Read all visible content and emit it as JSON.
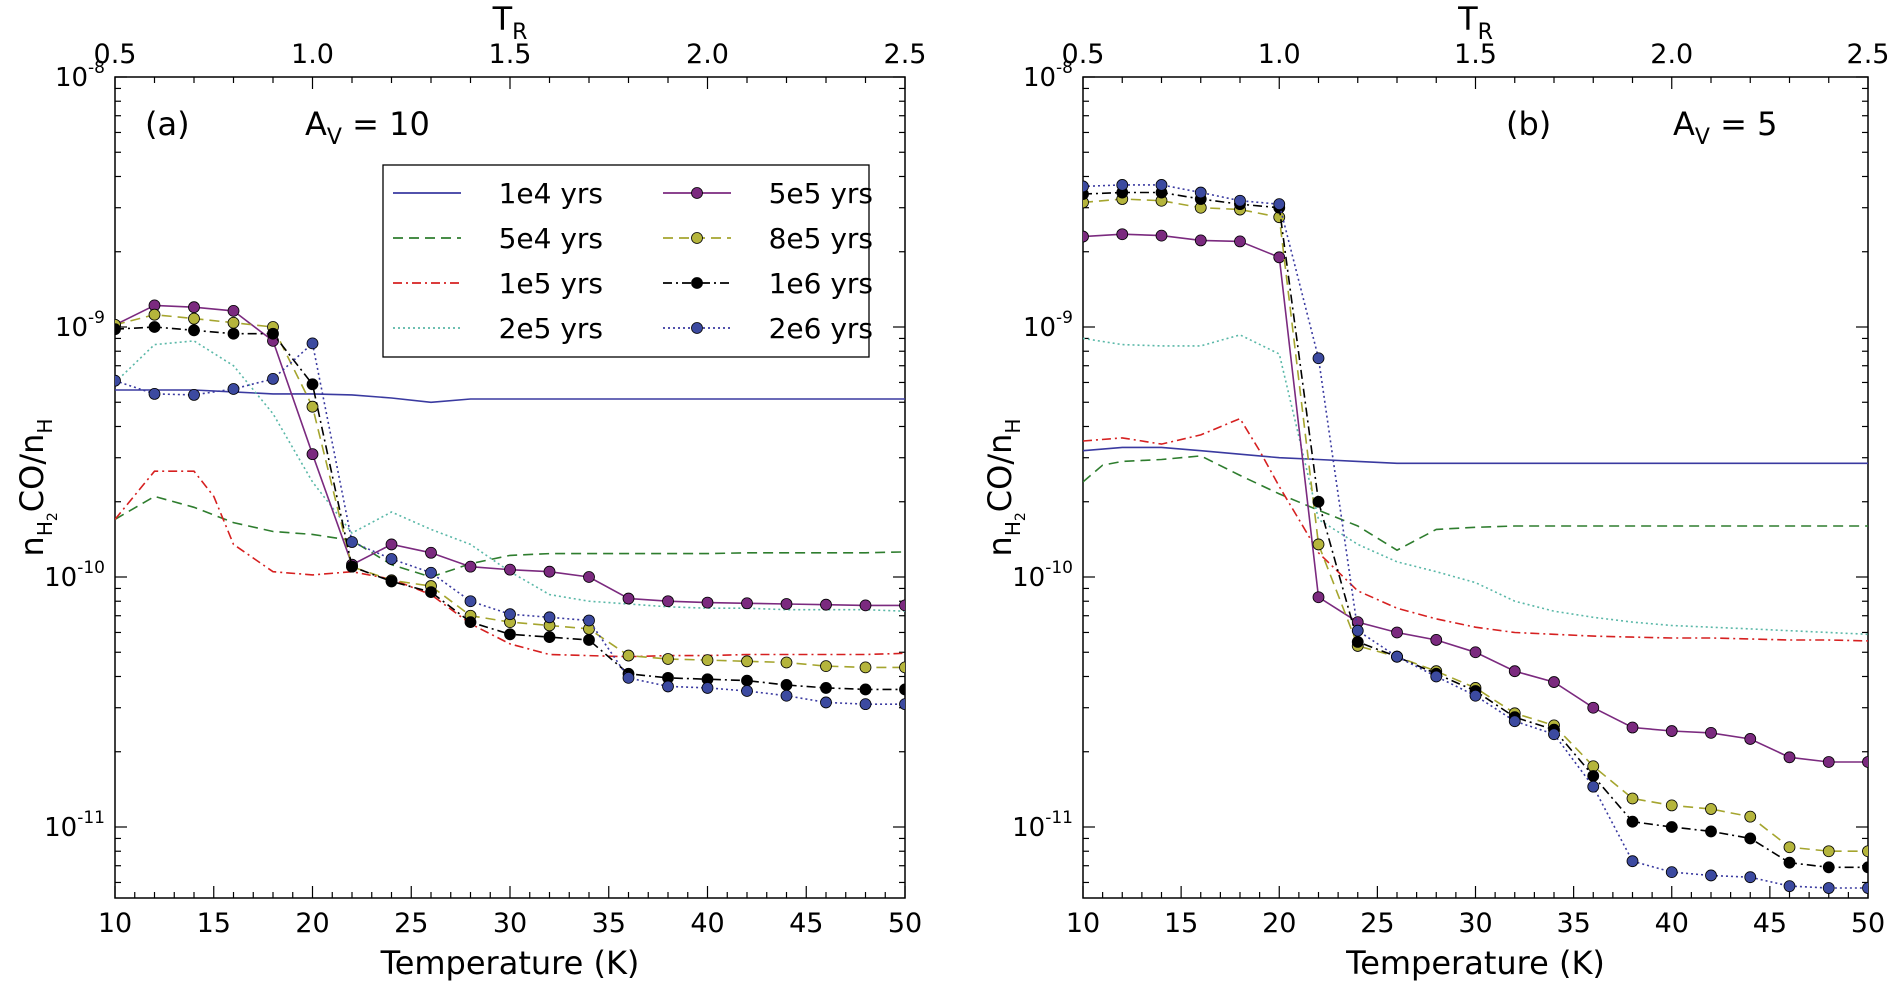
{
  "chart_data": [
    {
      "type": "line",
      "panel_label": "(a)",
      "title_prefix": "A",
      "title_sub": "V",
      "title_suffix": " = 10",
      "xlabel": "Temperature (K)",
      "ylabel": "nH2CO/nH",
      "ylabel_main": "n",
      "ylabel_sub1": "H",
      "ylabel_sub1b": "2",
      "ylabel_mid": "CO/n",
      "ylabel_sub2": "H",
      "top_label_main": "T",
      "top_label_sub": "R",
      "xlim": [
        10,
        50
      ],
      "top_xlim": [
        0.5,
        2.5
      ],
      "ylim": [
        5.2e-12,
        1e-08
      ],
      "yscale": "log",
      "x_ticks": [
        "10",
        "15",
        "20",
        "25",
        "30",
        "35",
        "40",
        "45",
        "50"
      ],
      "top_ticks": [
        "0.5",
        "1.0",
        "1.5",
        "2.0",
        "2.5"
      ],
      "y_ticks": [
        {
          "base": "10",
          "exp": "-8",
          "value": 1e-08
        },
        {
          "base": "10",
          "exp": "-9",
          "value": 1e-09
        },
        {
          "base": "10",
          "exp": "-10",
          "value": 1e-10
        },
        {
          "base": "10",
          "exp": "-11",
          "value": 1e-11
        }
      ],
      "legend_position": "upper-right",
      "series": [
        {
          "name": "1e4 yrs",
          "style": "solid",
          "color": "#3a3aa0",
          "marker": false,
          "x": [
            10,
            12,
            14,
            16,
            18,
            20,
            22,
            24,
            26,
            28,
            30,
            32,
            34,
            36,
            38,
            40,
            42,
            44,
            46,
            48,
            50
          ],
          "values": [
            5.6e-10,
            5.6e-10,
            5.6e-10,
            5.5e-10,
            5.4e-10,
            5.4e-10,
            5.35e-10,
            5.2e-10,
            5e-10,
            5.15e-10,
            5.15e-10,
            5.15e-10,
            5.15e-10,
            5.15e-10,
            5.15e-10,
            5.15e-10,
            5.15e-10,
            5.15e-10,
            5.15e-10,
            5.15e-10,
            5.15e-10
          ]
        },
        {
          "name": "5e4 yrs",
          "style": "dashed",
          "color": "#2e7d2e",
          "marker": false,
          "x": [
            10,
            12,
            14,
            16,
            18,
            20,
            22,
            24,
            26,
            28,
            30,
            32,
            34,
            36,
            38,
            40,
            42,
            44,
            46,
            48,
            50
          ],
          "values": [
            1.7e-10,
            2.1e-10,
            1.9e-10,
            1.65e-10,
            1.52e-10,
            1.48e-10,
            1.4e-10,
            1.12e-10,
            1e-10,
            1.13e-10,
            1.22e-10,
            1.24e-10,
            1.24e-10,
            1.24e-10,
            1.24e-10,
            1.24e-10,
            1.25e-10,
            1.25e-10,
            1.25e-10,
            1.25e-10,
            1.26e-10
          ]
        },
        {
          "name": "1e5 yrs",
          "style": "dashdot",
          "color": "#d62020",
          "marker": false,
          "x": [
            10,
            12,
            14,
            15,
            16,
            18,
            20,
            22,
            24,
            26,
            28,
            30,
            32,
            34,
            36,
            38,
            40,
            42,
            44,
            46,
            48,
            50
          ],
          "values": [
            1.7e-10,
            2.65e-10,
            2.65e-10,
            2.1e-10,
            1.35e-10,
            1.05e-10,
            1.02e-10,
            1.05e-10,
            9.8e-11,
            8.5e-11,
            6.5e-11,
            5.4e-11,
            4.9e-11,
            4.85e-11,
            4.8e-11,
            4.85e-11,
            4.85e-11,
            4.9e-11,
            4.9e-11,
            4.9e-11,
            4.9e-11,
            4.95e-11
          ]
        },
        {
          "name": "2e5 yrs",
          "style": "dotted",
          "color": "#5ab8a8",
          "marker": false,
          "x": [
            10,
            12,
            14,
            16,
            18,
            20,
            22,
            24,
            26,
            28,
            30,
            32,
            34,
            36,
            38,
            40,
            42,
            44,
            46,
            48,
            50
          ],
          "values": [
            6e-10,
            8.5e-10,
            8.8e-10,
            7e-10,
            4.5e-10,
            2.4e-10,
            1.5e-10,
            1.82e-10,
            1.55e-10,
            1.35e-10,
            1.05e-10,
            8.5e-11,
            8e-11,
            7.8e-11,
            7.6e-11,
            7.5e-11,
            7.5e-11,
            7.4e-11,
            7.4e-11,
            7.4e-11,
            7.3e-11
          ]
        },
        {
          "name": "5e5 yrs",
          "style": "solid",
          "color": "#7b2a7f",
          "marker": true,
          "marker_fill": "#7b2a7f",
          "x": [
            10,
            12,
            14,
            16,
            18,
            20,
            22,
            24,
            26,
            28,
            30,
            32,
            34,
            36,
            38,
            40,
            42,
            44,
            46,
            48,
            50
          ],
          "values": [
            1.02e-09,
            1.22e-09,
            1.2e-09,
            1.16e-09,
            8.8e-10,
            3.1e-10,
            1.12e-10,
            1.35e-10,
            1.25e-10,
            1.1e-10,
            1.07e-10,
            1.05e-10,
            1e-10,
            8.2e-11,
            8e-11,
            7.9e-11,
            7.85e-11,
            7.8e-11,
            7.75e-11,
            7.7e-11,
            7.7e-11
          ]
        },
        {
          "name": "8e5 yrs",
          "style": "dashed",
          "color": "#a5a52e",
          "marker": true,
          "marker_fill": "#b5b53c",
          "x": [
            10,
            12,
            14,
            16,
            18,
            20,
            22,
            24,
            26,
            28,
            30,
            32,
            34,
            36,
            38,
            40,
            42,
            44,
            46,
            48,
            50
          ],
          "values": [
            1.02e-09,
            1.12e-09,
            1.08e-09,
            1.04e-09,
            1e-09,
            4.8e-10,
            1.1e-10,
            9.7e-11,
            9.2e-11,
            7e-11,
            6.6e-11,
            6.4e-11,
            6.2e-11,
            4.85e-11,
            4.7e-11,
            4.65e-11,
            4.6e-11,
            4.55e-11,
            4.4e-11,
            4.35e-11,
            4.35e-11
          ]
        },
        {
          "name": "1e6 yrs",
          "style": "dashdot",
          "color": "#000000",
          "marker": true,
          "marker_fill": "#000000",
          "x": [
            10,
            12,
            14,
            16,
            18,
            20,
            22,
            24,
            26,
            28,
            30,
            32,
            34,
            36,
            38,
            40,
            42,
            44,
            46,
            48,
            50
          ],
          "values": [
            9.8e-10,
            1e-09,
            9.7e-10,
            9.4e-10,
            9.4e-10,
            5.9e-10,
            1.1e-10,
            9.6e-11,
            8.7e-11,
            6.6e-11,
            5.9e-11,
            5.75e-11,
            5.6e-11,
            4.1e-11,
            3.95e-11,
            3.9e-11,
            3.85e-11,
            3.7e-11,
            3.6e-11,
            3.55e-11,
            3.55e-11
          ]
        },
        {
          "name": "2e6 yrs",
          "style": "dotted",
          "color": "#3a3aa0",
          "marker": true,
          "marker_fill": "#3c4aa0",
          "x": [
            10,
            12,
            14,
            16,
            18,
            20,
            22,
            24,
            26,
            28,
            30,
            32,
            34,
            36,
            38,
            40,
            42,
            44,
            46,
            48,
            50
          ],
          "values": [
            6.1e-10,
            5.4e-10,
            5.35e-10,
            5.65e-10,
            6.2e-10,
            8.6e-10,
            1.38e-10,
            1.18e-10,
            1.04e-10,
            8e-11,
            7.1e-11,
            6.9e-11,
            6.7e-11,
            3.95e-11,
            3.65e-11,
            3.6e-11,
            3.5e-11,
            3.35e-11,
            3.15e-11,
            3.1e-11,
            3.1e-11
          ]
        }
      ]
    },
    {
      "type": "line",
      "panel_label": "(b)",
      "title_prefix": "A",
      "title_sub": "V",
      "title_suffix": " = 5",
      "xlabel": "Temperature (K)",
      "ylabel": "nH2CO/nH",
      "ylabel_main": "n",
      "ylabel_sub1": "H",
      "ylabel_sub1b": "2",
      "ylabel_mid": "CO/n",
      "ylabel_sub2": "H",
      "top_label_main": "T",
      "top_label_sub": "R",
      "xlim": [
        10,
        50
      ],
      "top_xlim": [
        0.5,
        2.5
      ],
      "ylim": [
        5.2e-12,
        1e-08
      ],
      "yscale": "log",
      "x_ticks": [
        "10",
        "15",
        "20",
        "25",
        "30",
        "35",
        "40",
        "45",
        "50"
      ],
      "top_ticks": [
        "0.5",
        "1.0",
        "1.5",
        "2.0",
        "2.5"
      ],
      "y_ticks": [
        {
          "base": "10",
          "exp": "-8",
          "value": 1e-08
        },
        {
          "base": "10",
          "exp": "-9",
          "value": 1e-09
        },
        {
          "base": "10",
          "exp": "-10",
          "value": 1e-10
        },
        {
          "base": "10",
          "exp": "-11",
          "value": 1e-11
        }
      ],
      "series": [
        {
          "name": "1e4 yrs",
          "style": "solid",
          "color": "#3a3aa0",
          "marker": false,
          "x": [
            10,
            12,
            14,
            16,
            18,
            20,
            22,
            24,
            26,
            28,
            30,
            32,
            34,
            36,
            38,
            40,
            42,
            44,
            46,
            48,
            50
          ],
          "values": [
            3.2e-10,
            3.3e-10,
            3.3e-10,
            3.2e-10,
            3.1e-10,
            3e-10,
            2.95e-10,
            2.9e-10,
            2.85e-10,
            2.85e-10,
            2.85e-10,
            2.85e-10,
            2.85e-10,
            2.85e-10,
            2.85e-10,
            2.85e-10,
            2.85e-10,
            2.85e-10,
            2.85e-10,
            2.85e-10,
            2.85e-10
          ]
        },
        {
          "name": "5e4 yrs",
          "style": "dashed",
          "color": "#2e7d2e",
          "marker": false,
          "x": [
            10,
            11,
            12,
            14,
            16,
            18,
            20,
            22,
            24,
            26,
            28,
            30,
            32,
            34,
            36,
            38,
            40,
            42,
            44,
            46,
            48,
            50
          ],
          "values": [
            2.4e-10,
            2.8e-10,
            2.9e-10,
            2.95e-10,
            3.05e-10,
            2.55e-10,
            2.15e-10,
            1.85e-10,
            1.6e-10,
            1.28e-10,
            1.55e-10,
            1.58e-10,
            1.6e-10,
            1.6e-10,
            1.6e-10,
            1.6e-10,
            1.6e-10,
            1.6e-10,
            1.6e-10,
            1.6e-10,
            1.6e-10,
            1.6e-10
          ]
        },
        {
          "name": "1e5 yrs",
          "style": "dashdot",
          "color": "#d62020",
          "marker": false,
          "x": [
            10,
            12,
            14,
            16,
            18,
            19,
            20,
            21,
            22,
            24,
            26,
            28,
            30,
            32,
            34,
            36,
            38,
            40,
            42,
            44,
            46,
            48,
            50
          ],
          "values": [
            3.5e-10,
            3.6e-10,
            3.4e-10,
            3.7e-10,
            4.3e-10,
            3.2e-10,
            2.3e-10,
            1.7e-10,
            1.25e-10,
            8.8e-11,
            7.5e-11,
            6.8e-11,
            6.3e-11,
            6e-11,
            5.9e-11,
            5.8e-11,
            5.75e-11,
            5.7e-11,
            5.7e-11,
            5.65e-11,
            5.6e-11,
            5.6e-11,
            5.55e-11
          ]
        },
        {
          "name": "2e5 yrs",
          "style": "dotted",
          "color": "#5ab8a8",
          "marker": false,
          "x": [
            10,
            12,
            14,
            16,
            18,
            20,
            22,
            24,
            26,
            28,
            30,
            32,
            34,
            36,
            38,
            40,
            42,
            44,
            46,
            48,
            50
          ],
          "values": [
            9e-10,
            8.5e-10,
            8.4e-10,
            8.4e-10,
            9.3e-10,
            7.8e-10,
            1.7e-10,
            1.35e-10,
            1.15e-10,
            1.05e-10,
            9.5e-11,
            8e-11,
            7.3e-11,
            6.9e-11,
            6.6e-11,
            6.4e-11,
            6.3e-11,
            6.2e-11,
            6.1e-11,
            6e-11,
            5.9e-11
          ]
        },
        {
          "name": "5e5 yrs",
          "style": "solid",
          "color": "#7b2a7f",
          "marker": true,
          "marker_fill": "#7b2a7f",
          "x": [
            10,
            12,
            14,
            16,
            18,
            20,
            22,
            24,
            26,
            28,
            30,
            32,
            34,
            36,
            38,
            40,
            42,
            44,
            46,
            48,
            50
          ],
          "values": [
            2.3e-09,
            2.35e-09,
            2.32e-09,
            2.22e-09,
            2.2e-09,
            1.9e-09,
            8.3e-11,
            6.6e-11,
            6e-11,
            5.6e-11,
            5e-11,
            4.2e-11,
            3.8e-11,
            3e-11,
            2.5e-11,
            2.42e-11,
            2.38e-11,
            2.25e-11,
            1.9e-11,
            1.82e-11,
            1.82e-11
          ]
        },
        {
          "name": "8e5 yrs",
          "style": "dashed",
          "color": "#a5a52e",
          "marker": true,
          "marker_fill": "#b5b53c",
          "x": [
            10,
            12,
            14,
            16,
            18,
            20,
            22,
            24,
            26,
            28,
            30,
            32,
            34,
            36,
            38,
            40,
            42,
            44,
            46,
            48,
            50
          ],
          "values": [
            3.15e-09,
            3.25e-09,
            3.2e-09,
            3e-09,
            2.95e-09,
            2.75e-09,
            1.35e-10,
            5.3e-11,
            4.8e-11,
            4.2e-11,
            3.6e-11,
            2.85e-11,
            2.55e-11,
            1.75e-11,
            1.3e-11,
            1.22e-11,
            1.18e-11,
            1.1e-11,
            8.3e-12,
            8e-12,
            8e-12
          ]
        },
        {
          "name": "1e6 yrs",
          "style": "dashdot",
          "color": "#000000",
          "marker": true,
          "marker_fill": "#000000",
          "x": [
            10,
            12,
            14,
            16,
            18,
            20,
            22,
            24,
            26,
            28,
            30,
            32,
            34,
            36,
            38,
            40,
            42,
            44,
            46,
            48,
            50
          ],
          "values": [
            3.4e-09,
            3.45e-09,
            3.45e-09,
            3.25e-09,
            3.1e-09,
            3e-09,
            2e-10,
            5.5e-11,
            4.8e-11,
            4.1e-11,
            3.5e-11,
            2.75e-11,
            2.45e-11,
            1.6e-11,
            1.05e-11,
            1e-11,
            9.6e-12,
            9e-12,
            7.2e-12,
            6.9e-12,
            6.9e-12
          ]
        },
        {
          "name": "2e6 yrs",
          "style": "dotted",
          "color": "#3a3aa0",
          "marker": true,
          "marker_fill": "#3c4aa0",
          "x": [
            10,
            12,
            14,
            16,
            18,
            20,
            22,
            24,
            26,
            28,
            30,
            32,
            34,
            36,
            38,
            40,
            42,
            44,
            46,
            48,
            50
          ],
          "values": [
            3.65e-09,
            3.7e-09,
            3.7e-09,
            3.45e-09,
            3.2e-09,
            3.1e-09,
            7.5e-10,
            6.1e-11,
            4.8e-11,
            4e-11,
            3.35e-11,
            2.65e-11,
            2.35e-11,
            1.45e-11,
            7.3e-12,
            6.6e-12,
            6.4e-12,
            6.3e-12,
            5.8e-12,
            5.7e-12,
            5.7e-12
          ]
        }
      ]
    }
  ]
}
